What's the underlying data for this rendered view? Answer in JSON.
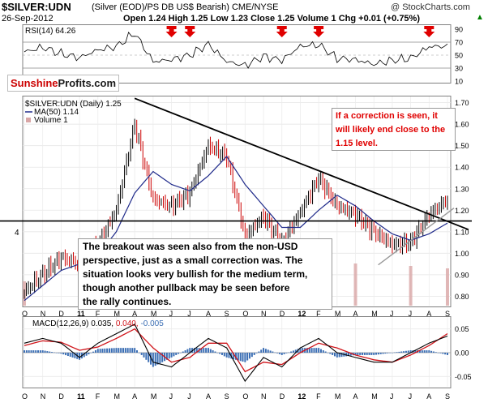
{
  "header": {
    "title": "$SILVER:UDN",
    "subtitle": "(Silver (EOD)/PS DB US$ Bearish)  CME/NYSE",
    "watermark": "@ StockCharts.com",
    "date": "26-Sep-2012",
    "ohlc": "Open 1.24  High 1.25  Low 1.23  Close 1.25  Volume 1  Chg +0.01 (+0.75%)",
    "change_marker": "▲"
  },
  "logo": {
    "text_a": "Sunshine",
    "text_b": "Profits.com"
  },
  "rsi": {
    "label": "RSI(14) 64.26"
  },
  "main": {
    "legend_symbol": "$SILVER:UDN (Daily) 1.25",
    "legend_ma": "MA(50) 1.14",
    "legend_vol": "Volume 1",
    "volume_axis_label": "4"
  },
  "annotations": {
    "correction_note": [
      "If a correction is seen, it",
      "will likely end close to the",
      "1.15 level."
    ],
    "breakout_note": [
      "The breakout was seen also from the non-USD",
      "perspective, just as a small correction was. The",
      "situation looks very bullish for the medium term,",
      "though another pullback may be seen before",
      "the rally continues."
    ]
  },
  "macd": {
    "label_prefix": "MACD(12,26,9) 0.035,",
    "label_signal": "0.040,",
    "label_hist": "-0.005"
  },
  "colors": {
    "price_up": "#000000",
    "price_down": "#cc0000",
    "ma": "#1f2a8a",
    "volume": "#d9a6a6",
    "macd": "#000000",
    "signal": "#d0141a",
    "histogram": "#3b6eb4",
    "arrow": "#e00000",
    "note": "#e00000",
    "logo_red": "#cc0000"
  },
  "chart_data": [
    {
      "type": "line",
      "name": "RSI(14)",
      "x": [
        "2010-10",
        "2010-11",
        "2010-12",
        "2011-01",
        "2011-02",
        "2011-03",
        "2011-04",
        "2011-05",
        "2011-06",
        "2011-07",
        "2011-08",
        "2011-09",
        "2011-10",
        "2011-11",
        "2011-12",
        "2012-01",
        "2012-02",
        "2012-03",
        "2012-04",
        "2012-05",
        "2012-06",
        "2012-07",
        "2012-08",
        "2012-09"
      ],
      "values": [
        55,
        62,
        52,
        46,
        58,
        63,
        84,
        40,
        43,
        50,
        67,
        40,
        34,
        48,
        42,
        64,
        66,
        45,
        43,
        36,
        42,
        45,
        63,
        64
      ],
      "ylim": [
        10,
        95
      ],
      "ticks": [
        10,
        30,
        50,
        70,
        90
      ],
      "overbought": 70,
      "oversold": 30
    },
    {
      "type": "line",
      "name": "$SILVER:UDN (Daily)",
      "x": [
        "2010-10",
        "2010-11",
        "2010-12",
        "2011-01",
        "2011-02",
        "2011-03",
        "2011-04",
        "2011-05",
        "2011-06",
        "2011-07",
        "2011-08",
        "2011-09",
        "2011-10",
        "2011-11",
        "2011-12",
        "2012-01",
        "2012-02",
        "2012-03",
        "2012-04",
        "2012-05",
        "2012-06",
        "2012-07",
        "2012-08",
        "2012-09"
      ],
      "x_tick_labels": [
        "O",
        "N",
        "D",
        "11",
        "F",
        "M",
        "A",
        "M",
        "J",
        "J",
        "A",
        "S",
        "O",
        "N",
        "D",
        "12",
        "F",
        "M",
        "A",
        "M",
        "J",
        "J",
        "A",
        "S"
      ],
      "values": [
        0.82,
        0.9,
        0.98,
        0.95,
        1.04,
        1.2,
        1.6,
        1.25,
        1.22,
        1.28,
        1.5,
        1.45,
        1.08,
        1.17,
        1.05,
        1.19,
        1.35,
        1.22,
        1.18,
        1.1,
        1.04,
        1.05,
        1.18,
        1.25
      ],
      "ma50": [
        0.78,
        0.85,
        0.92,
        0.95,
        0.99,
        1.1,
        1.28,
        1.38,
        1.32,
        1.29,
        1.36,
        1.45,
        1.32,
        1.22,
        1.12,
        1.12,
        1.2,
        1.27,
        1.22,
        1.15,
        1.09,
        1.06,
        1.09,
        1.14
      ],
      "ylim": [
        0.76,
        1.71
      ],
      "ticks": [
        0.8,
        0.9,
        1.0,
        1.1,
        1.2,
        1.3,
        1.4,
        1.5,
        1.6,
        1.7
      ],
      "resistance_line": 1.15,
      "trendline": [
        [
          "2011-04",
          1.72
        ],
        [
          "2012-09",
          1.14
        ]
      ],
      "support_line": [
        [
          "2012-07",
          1.04
        ],
        [
          "2012-09",
          1.21
        ]
      ]
    },
    {
      "type": "bar",
      "name": "Volume",
      "x": [
        "2010-10",
        "2011-01",
        "2011-04",
        "2011-07",
        "2011-10",
        "2012-01",
        "2012-04",
        "2012-07",
        "2012-09"
      ],
      "values": [
        1,
        1,
        1,
        1,
        1,
        1,
        1,
        1,
        1
      ]
    },
    {
      "type": "line",
      "name": "MACD(12,26,9)",
      "x": [
        "2010-10",
        "2010-11",
        "2010-12",
        "2011-01",
        "2011-02",
        "2011-03",
        "2011-04",
        "2011-05",
        "2011-06",
        "2011-07",
        "2011-08",
        "2011-09",
        "2011-10",
        "2011-11",
        "2011-12",
        "2012-01",
        "2012-02",
        "2012-03",
        "2012-04",
        "2012-05",
        "2012-06",
        "2012-07",
        "2012-08",
        "2012-09"
      ],
      "x_tick_labels": [
        "O",
        "N",
        "D",
        "11",
        "F",
        "M",
        "A",
        "M",
        "J",
        "J",
        "A",
        "S",
        "O",
        "N",
        "D",
        "12",
        "F",
        "M",
        "A",
        "M",
        "J",
        "J",
        "A",
        "S"
      ],
      "series": [
        {
          "name": "MACD",
          "values": [
            0.02,
            0.03,
            0.02,
            -0.01,
            0.02,
            0.04,
            0.06,
            -0.02,
            -0.03,
            0.0,
            0.03,
            0.01,
            -0.06,
            -0.01,
            -0.03,
            0.01,
            0.03,
            0.0,
            -0.01,
            -0.02,
            -0.02,
            0.0,
            0.02,
            0.035
          ]
        },
        {
          "name": "Signal",
          "values": [
            0.015,
            0.025,
            0.022,
            0.005,
            0.012,
            0.03,
            0.05,
            0.01,
            -0.02,
            -0.01,
            0.02,
            0.02,
            -0.04,
            -0.02,
            -0.025,
            0.0,
            0.02,
            0.01,
            -0.005,
            -0.015,
            -0.02,
            -0.005,
            0.015,
            0.04
          ]
        },
        {
          "name": "Histogram",
          "values": [
            0.005,
            0.005,
            -0.002,
            -0.015,
            0.008,
            0.01,
            0.01,
            -0.03,
            -0.01,
            0.01,
            0.01,
            -0.01,
            -0.02,
            0.01,
            -0.005,
            0.01,
            0.01,
            -0.01,
            -0.005,
            -0.005,
            0.0,
            0.005,
            0.005,
            -0.005
          ]
        }
      ],
      "ylim": [
        -0.07,
        0.07
      ],
      "ticks": [
        -0.05,
        0.0,
        0.05
      ]
    }
  ],
  "rsi_arrows": [
    "2011-06",
    "2011-07",
    "2011-12",
    "2012-02",
    "2012-08"
  ]
}
